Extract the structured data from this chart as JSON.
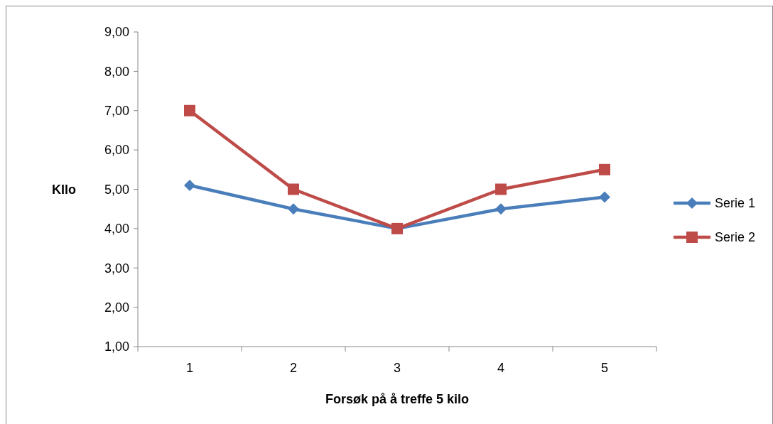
{
  "chart_data": {
    "type": "line",
    "xlabel": "Forsøk på å treffe 5 kilo",
    "ylabel": "KIlo",
    "categories": [
      "1",
      "2",
      "3",
      "4",
      "5"
    ],
    "series": [
      {
        "name": "Serie 1",
        "color": "#4a7ebb",
        "marker": "diamond",
        "values": [
          5.1,
          4.5,
          4.0,
          4.5,
          4.8
        ]
      },
      {
        "name": "Serie 2",
        "color": "#be4b48",
        "marker": "square",
        "values": [
          7.0,
          5.0,
          4.0,
          5.0,
          5.5
        ]
      }
    ],
    "ylim": [
      1,
      9
    ],
    "yticks": [
      {
        "value": 1,
        "label": "1,00"
      },
      {
        "value": 2,
        "label": "2,00"
      },
      {
        "value": 3,
        "label": "3,00"
      },
      {
        "value": 4,
        "label": "4,00"
      },
      {
        "value": 5,
        "label": "5,00"
      },
      {
        "value": 6,
        "label": "6,00"
      },
      {
        "value": 7,
        "label": "7,00"
      },
      {
        "value": 8,
        "label": "8,00"
      },
      {
        "value": 9,
        "label": "9,00"
      }
    ],
    "grid": false,
    "legend": "right",
    "line_style": "solid"
  }
}
